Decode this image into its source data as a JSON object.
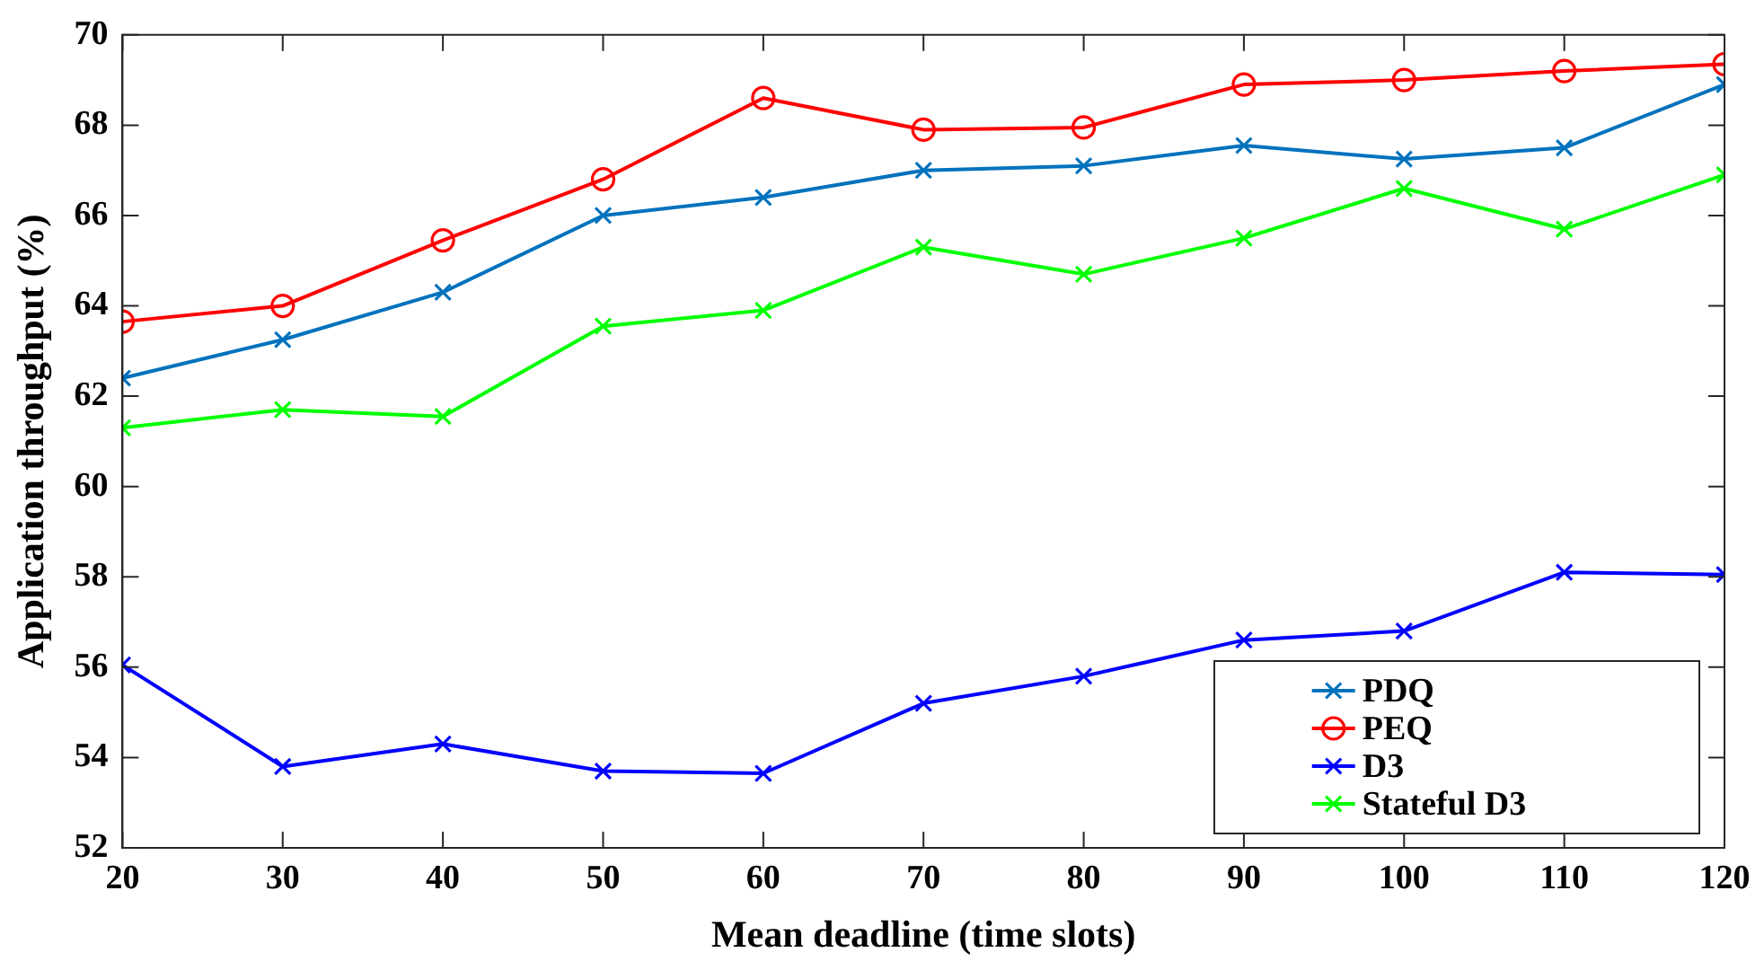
{
  "chart_data": {
    "type": "line",
    "xlabel": "Mean deadline (time slots)",
    "ylabel": "Application throughput (%)",
    "x": [
      20,
      30,
      40,
      50,
      60,
      70,
      80,
      90,
      100,
      110,
      120
    ],
    "xlim": [
      20,
      120
    ],
    "xticks": [
      20,
      30,
      40,
      50,
      60,
      70,
      80,
      90,
      100,
      110,
      120
    ],
    "ylim": [
      52,
      70
    ],
    "yticks": [
      52,
      54,
      56,
      58,
      60,
      62,
      64,
      66,
      68,
      70
    ],
    "legend": "bottom right",
    "line_style": "solid",
    "series": [
      {
        "name": "PDQ",
        "color": "#0072bd",
        "marker": "cross",
        "values": [
          62.4,
          63.25,
          64.3,
          66.0,
          66.4,
          67.0,
          67.1,
          67.55,
          67.25,
          67.5,
          68.9
        ]
      },
      {
        "name": "PEQ",
        "color": "#ff0000",
        "marker": "circle",
        "values": [
          63.65,
          64.0,
          65.45,
          66.8,
          68.6,
          67.9,
          67.95,
          68.9,
          69.0,
          69.2,
          69.35
        ]
      },
      {
        "name": "D3",
        "color": "#0000ff",
        "marker": "cross",
        "values": [
          56.05,
          53.8,
          54.3,
          53.7,
          53.65,
          55.2,
          55.8,
          56.6,
          56.8,
          58.1,
          58.05
        ]
      },
      {
        "name": "Stateful D3",
        "color": "#00ff00",
        "marker": "cross",
        "values": [
          61.3,
          61.7,
          61.55,
          63.55,
          63.9,
          65.3,
          64.7,
          65.5,
          66.6,
          65.7,
          66.9
        ]
      }
    ]
  }
}
